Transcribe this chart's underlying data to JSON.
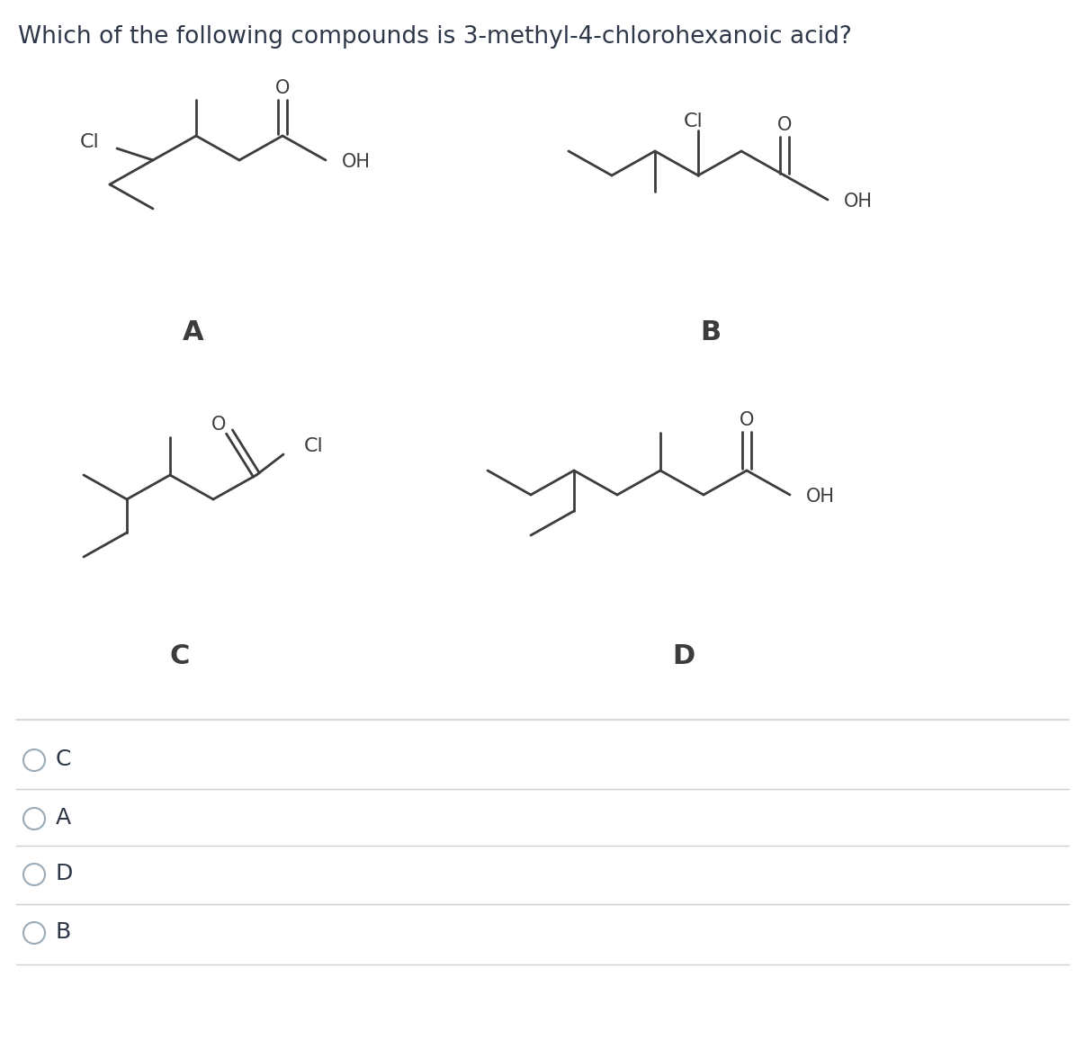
{
  "title": "Which of the following compounds is 3-methyl-4-chlorohexanoic acid?",
  "title_fontsize": 19,
  "background_color": "#ffffff",
  "bond_color": "#3c3c3c",
  "label_color": "#3c3c3c",
  "choices": [
    "C",
    "A",
    "D",
    "B"
  ],
  "answer_label_fontsize": 22,
  "choice_fontsize": 18,
  "structure_labels": [
    "A",
    "B",
    "C",
    "D"
  ],
  "divider_color": "#d0d0d0",
  "circle_color": "#9aabb8"
}
